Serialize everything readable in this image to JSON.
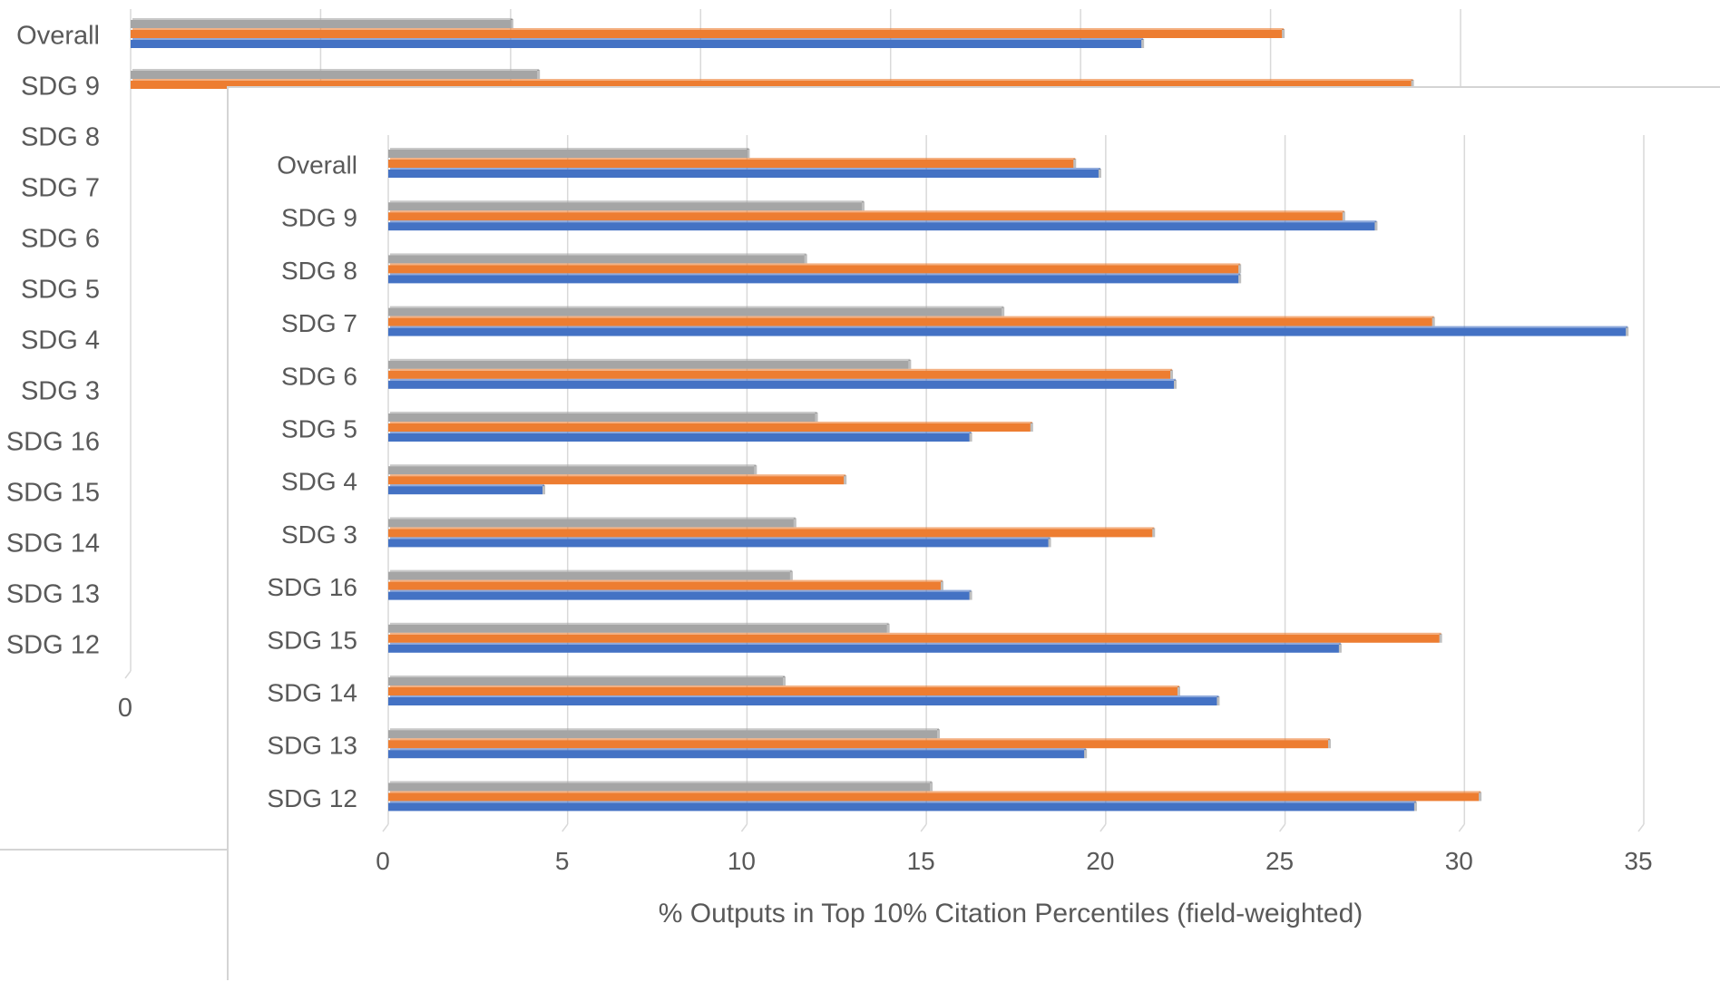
{
  "colors": {
    "gray": "#a5a5a5",
    "orange": "#ed7d31",
    "blue": "#4472c4",
    "grid": "#d9d9d9",
    "text": "#595959"
  },
  "chart_data": [
    {
      "type": "bar",
      "orientation": "horizontal",
      "categories": [
        "Overall",
        "SDG 9",
        "SDG 8",
        "SDG 7",
        "SDG 6",
        "SDG 5",
        "SDG 4",
        "SDG 3",
        "SDG 16",
        "SDG 15",
        "SDG 14",
        "SDG 13",
        "SDG 12"
      ],
      "series": [
        {
          "values": [
            10.0,
            10.7,
            null,
            null,
            null,
            null,
            null,
            null,
            null,
            null,
            null,
            null,
            null
          ]
        },
        {
          "values": [
            30.3,
            33.7,
            null,
            null,
            null,
            null,
            null,
            null,
            null,
            null,
            null,
            null,
            null
          ]
        },
        {
          "values": [
            26.6,
            null,
            null,
            null,
            null,
            null,
            null,
            null,
            null,
            null,
            null,
            null,
            null
          ]
        }
      ],
      "xticks": [
        "0"
      ],
      "grid": true
    },
    {
      "type": "bar",
      "orientation": "horizontal",
      "categories": [
        "Overall",
        "SDG 9",
        "SDG 8",
        "SDG 7",
        "SDG 6",
        "SDG 5",
        "SDG 4",
        "SDG 3",
        "SDG 16",
        "SDG 15",
        "SDG 14",
        "SDG 13",
        "SDG 12"
      ],
      "series": [
        {
          "values": [
            10.0,
            13.2,
            11.6,
            17.1,
            14.5,
            11.9,
            10.2,
            11.3,
            11.2,
            13.9,
            11.0,
            15.3,
            15.1
          ]
        },
        {
          "values": [
            19.1,
            26.6,
            23.7,
            29.1,
            21.8,
            17.9,
            12.7,
            21.3,
            15.4,
            29.3,
            22.0,
            26.2,
            30.4
          ]
        },
        {
          "values": [
            19.8,
            27.5,
            23.7,
            34.5,
            21.9,
            16.2,
            4.3,
            18.4,
            16.2,
            26.5,
            23.1,
            19.4,
            28.6
          ]
        }
      ],
      "xlabel": "% Outputs in Top 10% Citation Percentiles (field-weighted)",
      "xlim": [
        0,
        35
      ],
      "xticks": [
        "0",
        "5",
        "10",
        "15",
        "20",
        "25",
        "30",
        "35"
      ],
      "grid": true
    }
  ]
}
